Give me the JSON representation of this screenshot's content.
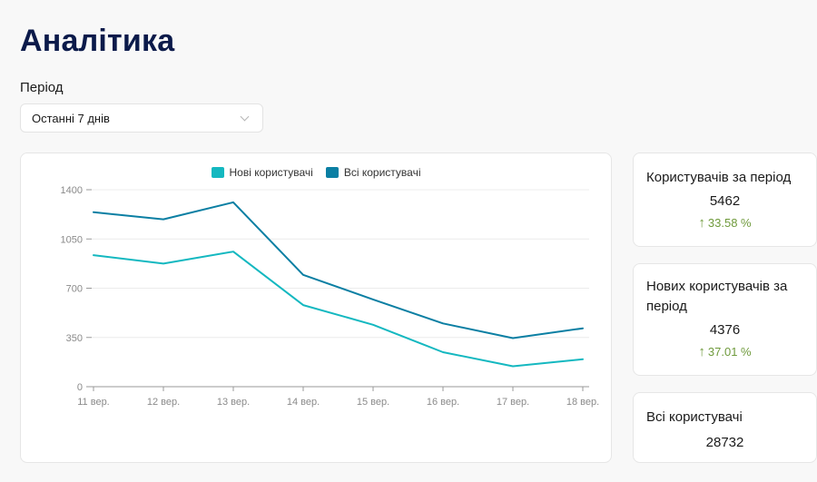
{
  "page": {
    "title": "Аналітика"
  },
  "filter": {
    "label": "Період",
    "selected": "Останні 7 днів"
  },
  "colors": {
    "new_users": "#14b8c0",
    "all_users": "#0b7fa3",
    "positive_change": "#6f9a3c",
    "title": "#0b1a4a"
  },
  "chart_data": {
    "type": "line",
    "title": "",
    "xlabel": "",
    "ylabel": "",
    "x": [
      "11 вер.",
      "12 вер.",
      "13 вер.",
      "14 вер.",
      "15 вер.",
      "16 вер.",
      "17 вер.",
      "18 вер."
    ],
    "yticks": [
      0,
      350,
      700,
      1050,
      1400
    ],
    "ylim": [
      0,
      1400
    ],
    "grid": true,
    "legend_position": "top-center",
    "series": [
      {
        "name": "Нові користувачі",
        "color": "#14b8c0",
        "values": [
          935,
          875,
          960,
          580,
          440,
          245,
          145,
          195
        ]
      },
      {
        "name": "Всі користувачі",
        "color": "#0b7fa3",
        "values": [
          1240,
          1190,
          1310,
          795,
          620,
          450,
          345,
          415
        ]
      }
    ]
  },
  "stats": {
    "users_period": {
      "title": "Користувачів за період",
      "value": "5462",
      "change": "33.58 %",
      "change_icon": "arrow-up-icon"
    },
    "new_users_period": {
      "title": "Нових користувачів за період",
      "value": "4376",
      "change": "37.01 %",
      "change_icon": "arrow-up-icon"
    },
    "all_users": {
      "title": "Всі користувачі",
      "value": "28732"
    }
  }
}
